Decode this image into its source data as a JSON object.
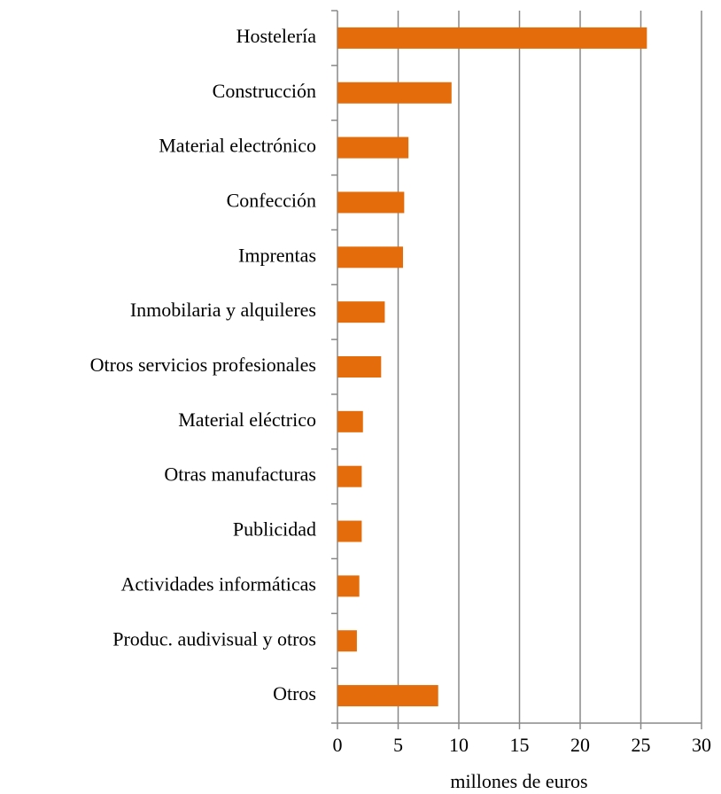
{
  "chart_data": {
    "type": "bar",
    "orientation": "horizontal",
    "categories": [
      "Hostelería",
      "Construcción",
      "Material electrónico",
      "Confección",
      "Imprentas",
      "Inmobilaria y alquileres",
      "Otros servicios profesionales",
      "Material eléctrico",
      "Otras manufacturas",
      "Publicidad",
      "Actividades informáticas",
      "Produc. audivisual y otros",
      "Otros"
    ],
    "values": [
      25.5,
      9.4,
      5.85,
      5.5,
      5.4,
      3.9,
      3.6,
      2.1,
      2.0,
      2.0,
      1.8,
      1.6,
      8.3
    ],
    "color": "#e46c0a",
    "xlim": [
      0,
      30
    ],
    "xticks": [
      0,
      5,
      10,
      15,
      20,
      25,
      30
    ],
    "x_label": "millones de euros",
    "grid": true
  }
}
